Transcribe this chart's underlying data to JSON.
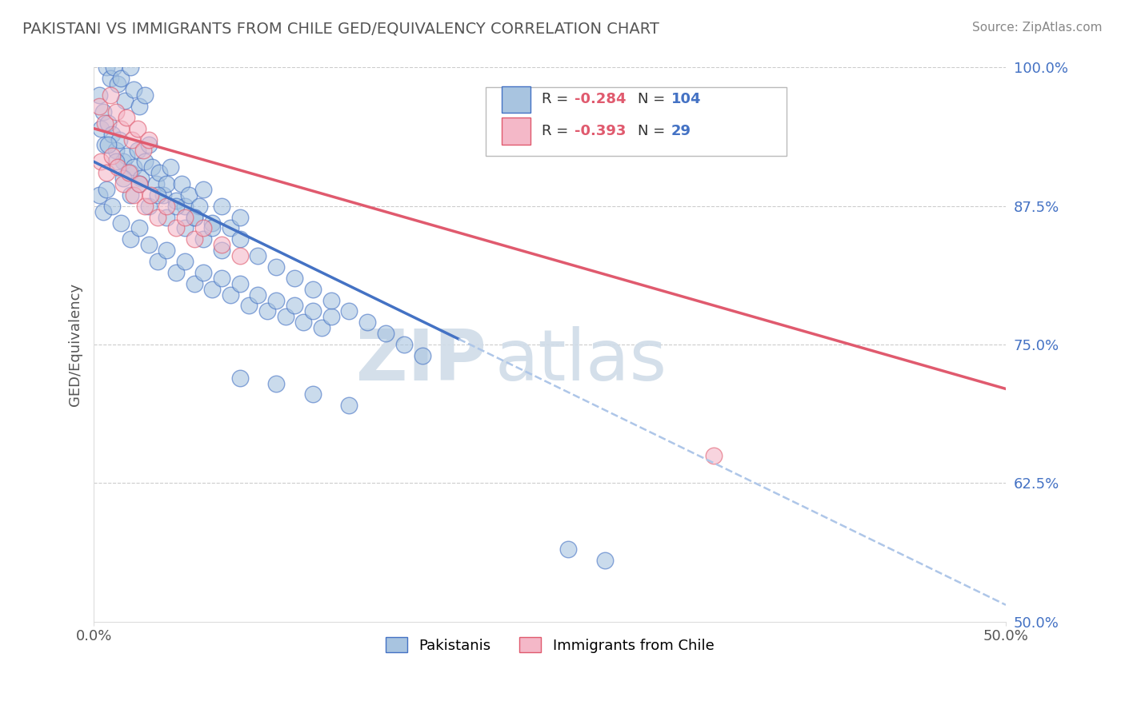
{
  "title": "PAKISTANI VS IMMIGRANTS FROM CHILE GED/EQUIVALENCY CORRELATION CHART",
  "source_text": "Source: ZipAtlas.com",
  "xmin": 0.0,
  "xmax": 50.0,
  "ymin": 50.0,
  "ymax": 100.0,
  "blue_line_color": "#4472c4",
  "pink_line_color": "#e05a6e",
  "dashed_line_color": "#aec6e8",
  "pakistani_color": "#a8c4e0",
  "pakistani_edge_color": "#4472c4",
  "chile_color": "#f4b8c8",
  "chile_edge_color": "#e05a6e",
  "grid_color": "#cccccc",
  "background_color": "#ffffff",
  "title_color": "#555555",
  "source_color": "#888888",
  "ylabel_color": "#555555",
  "ytick_color": "#4472c4",
  "xtick_color": "#555555",
  "watermark_color": "#d0dce8",
  "legend_R_neg_color": "#e05a6e",
  "legend_N_color": "#4472c4",
  "blue_line_x": [
    0.0,
    20.0
  ],
  "blue_line_y": [
    91.5,
    75.5
  ],
  "pink_line_x": [
    0.0,
    50.0
  ],
  "pink_line_y": [
    94.5,
    71.0
  ],
  "dashed_line_x": [
    20.0,
    50.0
  ],
  "dashed_line_y": [
    75.5,
    51.5
  ],
  "pakistanis_data": [
    [
      0.3,
      97.5
    ],
    [
      0.5,
      96.0
    ],
    [
      0.7,
      100.0
    ],
    [
      0.9,
      99.0
    ],
    [
      1.1,
      100.0
    ],
    [
      1.3,
      98.5
    ],
    [
      1.5,
      99.0
    ],
    [
      1.7,
      97.0
    ],
    [
      2.0,
      100.0
    ],
    [
      2.2,
      98.0
    ],
    [
      2.5,
      96.5
    ],
    [
      2.8,
      97.5
    ],
    [
      0.4,
      94.5
    ],
    [
      0.6,
      93.0
    ],
    [
      0.8,
      95.0
    ],
    [
      1.0,
      94.0
    ],
    [
      1.2,
      92.5
    ],
    [
      1.4,
      93.5
    ],
    [
      1.6,
      91.5
    ],
    [
      1.8,
      92.0
    ],
    [
      2.0,
      90.5
    ],
    [
      2.2,
      91.0
    ],
    [
      2.4,
      92.5
    ],
    [
      2.6,
      90.0
    ],
    [
      2.8,
      91.5
    ],
    [
      3.0,
      93.0
    ],
    [
      3.2,
      91.0
    ],
    [
      3.4,
      89.5
    ],
    [
      3.6,
      90.5
    ],
    [
      3.8,
      88.5
    ],
    [
      4.0,
      89.5
    ],
    [
      4.2,
      91.0
    ],
    [
      4.5,
      88.0
    ],
    [
      4.8,
      89.5
    ],
    [
      5.0,
      87.5
    ],
    [
      5.2,
      88.5
    ],
    [
      5.5,
      86.5
    ],
    [
      5.8,
      87.5
    ],
    [
      6.0,
      89.0
    ],
    [
      6.5,
      86.0
    ],
    [
      7.0,
      87.5
    ],
    [
      7.5,
      85.5
    ],
    [
      8.0,
      86.5
    ],
    [
      0.3,
      88.5
    ],
    [
      0.5,
      87.0
    ],
    [
      0.7,
      89.0
    ],
    [
      1.0,
      87.5
    ],
    [
      1.5,
      86.0
    ],
    [
      2.0,
      84.5
    ],
    [
      2.5,
      85.5
    ],
    [
      3.0,
      84.0
    ],
    [
      3.5,
      82.5
    ],
    [
      4.0,
      83.5
    ],
    [
      4.5,
      81.5
    ],
    [
      5.0,
      82.5
    ],
    [
      5.5,
      80.5
    ],
    [
      6.0,
      81.5
    ],
    [
      6.5,
      80.0
    ],
    [
      7.0,
      81.0
    ],
    [
      7.5,
      79.5
    ],
    [
      8.0,
      80.5
    ],
    [
      8.5,
      78.5
    ],
    [
      9.0,
      79.5
    ],
    [
      9.5,
      78.0
    ],
    [
      10.0,
      79.0
    ],
    [
      10.5,
      77.5
    ],
    [
      11.0,
      78.5
    ],
    [
      11.5,
      77.0
    ],
    [
      12.0,
      78.0
    ],
    [
      12.5,
      76.5
    ],
    [
      13.0,
      77.5
    ],
    [
      0.8,
      93.0
    ],
    [
      1.2,
      91.5
    ],
    [
      1.6,
      90.0
    ],
    [
      2.0,
      88.5
    ],
    [
      2.5,
      89.5
    ],
    [
      3.0,
      87.5
    ],
    [
      3.5,
      88.5
    ],
    [
      4.0,
      86.5
    ],
    [
      4.5,
      87.5
    ],
    [
      5.0,
      85.5
    ],
    [
      5.5,
      86.5
    ],
    [
      6.0,
      84.5
    ],
    [
      6.5,
      85.5
    ],
    [
      7.0,
      83.5
    ],
    [
      8.0,
      84.5
    ],
    [
      9.0,
      83.0
    ],
    [
      10.0,
      82.0
    ],
    [
      11.0,
      81.0
    ],
    [
      12.0,
      80.0
    ],
    [
      13.0,
      79.0
    ],
    [
      14.0,
      78.0
    ],
    [
      15.0,
      77.0
    ],
    [
      16.0,
      76.0
    ],
    [
      17.0,
      75.0
    ],
    [
      18.0,
      74.0
    ],
    [
      8.0,
      72.0
    ],
    [
      10.0,
      71.5
    ],
    [
      12.0,
      70.5
    ],
    [
      14.0,
      69.5
    ],
    [
      26.0,
      56.5
    ],
    [
      28.0,
      55.5
    ]
  ],
  "chile_data": [
    [
      0.3,
      96.5
    ],
    [
      0.6,
      95.0
    ],
    [
      0.9,
      97.5
    ],
    [
      1.2,
      96.0
    ],
    [
      1.5,
      94.5
    ],
    [
      1.8,
      95.5
    ],
    [
      2.1,
      93.5
    ],
    [
      2.4,
      94.5
    ],
    [
      2.7,
      92.5
    ],
    [
      3.0,
      93.5
    ],
    [
      0.4,
      91.5
    ],
    [
      0.7,
      90.5
    ],
    [
      1.0,
      92.0
    ],
    [
      1.3,
      91.0
    ],
    [
      1.6,
      89.5
    ],
    [
      1.9,
      90.5
    ],
    [
      2.2,
      88.5
    ],
    [
      2.5,
      89.5
    ],
    [
      2.8,
      87.5
    ],
    [
      3.1,
      88.5
    ],
    [
      3.5,
      86.5
    ],
    [
      4.0,
      87.5
    ],
    [
      4.5,
      85.5
    ],
    [
      5.0,
      86.5
    ],
    [
      5.5,
      84.5
    ],
    [
      6.0,
      85.5
    ],
    [
      7.0,
      84.0
    ],
    [
      8.0,
      83.0
    ],
    [
      34.0,
      65.0
    ]
  ]
}
